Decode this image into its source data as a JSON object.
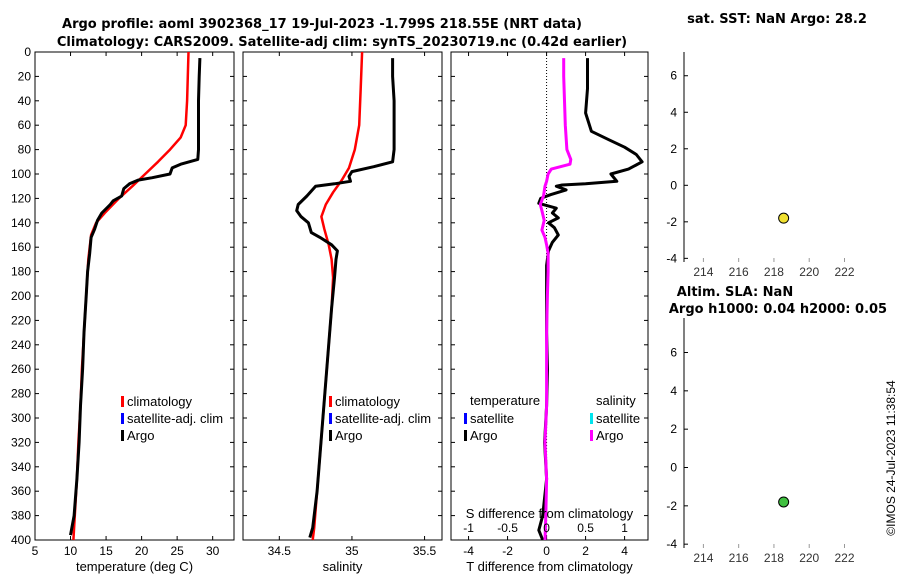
{
  "title_line1": "Argo profile: aoml 3902368_17 19-Jul-2023 -1.799S 218.55E (NRT data)",
  "title_line2": "Climatology: CARS2009. Satellite-adj clim: synTS_20230719.nc (0.42d earlier)",
  "timestamp": "©IMOS 24-Jul-2023 11:38:54",
  "colors": {
    "climatology": "#ff0000",
    "satellite": "#0000ff",
    "argo": "#000000",
    "salinity_diff": "#ff00ff",
    "satellite_s": "#00e5ee",
    "sst_marker": "#f0e030",
    "sla_marker": "#40c040"
  },
  "chart_data": [
    {
      "id": "temperature",
      "type": "line",
      "xlabel": "temperature (deg C)",
      "xlim": [
        5,
        33
      ],
      "ylim": [
        0,
        400
      ],
      "xticks": [
        5,
        10,
        15,
        20,
        25,
        30
      ],
      "yticks": [
        0,
        20,
        40,
        60,
        80,
        100,
        120,
        140,
        160,
        180,
        200,
        220,
        240,
        260,
        280,
        300,
        320,
        340,
        360,
        380,
        400
      ],
      "legend": [
        "climatology",
        "satellite-adj. clim",
        "Argo"
      ],
      "series": [
        {
          "name": "climatology",
          "points": [
            [
              26.6,
              0
            ],
            [
              26.5,
              20
            ],
            [
              26.4,
              40
            ],
            [
              26.2,
              60
            ],
            [
              25.5,
              70
            ],
            [
              24,
              80
            ],
            [
              22.3,
              90
            ],
            [
              20.5,
              100
            ],
            [
              18.7,
              110
            ],
            [
              16.8,
              120
            ],
            [
              14.8,
              132
            ],
            [
              13.6,
              140
            ],
            [
              12.9,
              150
            ],
            [
              12.5,
              170
            ],
            [
              12.2,
              200
            ],
            [
              11.9,
              230
            ],
            [
              11.6,
              260
            ],
            [
              11.4,
              290
            ],
            [
              11.1,
              320
            ],
            [
              10.9,
              350
            ],
            [
              10.6,
              380
            ],
            [
              10.4,
              400
            ]
          ]
        },
        {
          "name": "Argo",
          "points": [
            [
              28.2,
              5
            ],
            [
              28.1,
              20
            ],
            [
              28.0,
              40
            ],
            [
              28.0,
              60
            ],
            [
              28.0,
              80
            ],
            [
              27.9,
              88
            ],
            [
              25.5,
              92
            ],
            [
              24.3,
              95
            ],
            [
              24.0,
              100
            ],
            [
              21.5,
              103
            ],
            [
              19.5,
              105
            ],
            [
              18.3,
              108
            ],
            [
              17.5,
              112
            ],
            [
              17.2,
              118
            ],
            [
              16.0,
              122
            ],
            [
              15.6,
              125
            ],
            [
              14.4,
              132
            ],
            [
              13.8,
              138
            ],
            [
              13.4,
              145
            ],
            [
              12.9,
              152
            ],
            [
              12.7,
              165
            ],
            [
              12.4,
              180
            ],
            [
              12.2,
              200
            ],
            [
              11.9,
              230
            ],
            [
              11.7,
              260
            ],
            [
              11.4,
              290
            ],
            [
              11.2,
              320
            ],
            [
              10.9,
              350
            ],
            [
              10.5,
              380
            ],
            [
              10.0,
              396
            ]
          ]
        }
      ]
    },
    {
      "id": "salinity",
      "type": "line",
      "xlabel": "salinity",
      "xlim": [
        34.25,
        35.62
      ],
      "ylim": [
        0,
        400
      ],
      "xticks": [
        34.5,
        35,
        35.5
      ],
      "legend": [
        "climatology",
        "satellite-adj. clim",
        "Argo"
      ],
      "series": [
        {
          "name": "climatology",
          "points": [
            [
              35.07,
              0
            ],
            [
              35.06,
              30
            ],
            [
              35.05,
              60
            ],
            [
              35.02,
              80
            ],
            [
              34.98,
              95
            ],
            [
              34.93,
              105
            ],
            [
              34.87,
              115
            ],
            [
              34.82,
              125
            ],
            [
              34.79,
              135
            ],
            [
              34.81,
              145
            ],
            [
              34.84,
              158
            ],
            [
              34.86,
              170
            ],
            [
              34.87,
              185
            ],
            [
              34.86,
              210
            ],
            [
              34.84,
              240
            ],
            [
              34.82,
              270
            ],
            [
              34.8,
              300
            ],
            [
              34.78,
              330
            ],
            [
              34.76,
              360
            ],
            [
              34.74,
              390
            ],
            [
              34.73,
              400
            ]
          ]
        },
        {
          "name": "Argo",
          "points": [
            [
              35.28,
              5
            ],
            [
              35.28,
              20
            ],
            [
              35.29,
              40
            ],
            [
              35.29,
              60
            ],
            [
              35.29,
              80
            ],
            [
              35.28,
              90
            ],
            [
              35.15,
              94
            ],
            [
              35.0,
              98
            ],
            [
              34.98,
              102
            ],
            [
              34.99,
              106
            ],
            [
              34.88,
              108
            ],
            [
              34.75,
              110
            ],
            [
              34.69,
              118
            ],
            [
              34.63,
              125
            ],
            [
              34.62,
              130
            ],
            [
              34.65,
              135
            ],
            [
              34.7,
              140
            ],
            [
              34.72,
              148
            ],
            [
              34.78,
              152
            ],
            [
              34.86,
              158
            ],
            [
              34.9,
              163
            ],
            [
              34.89,
              170
            ],
            [
              34.88,
              185
            ],
            [
              34.86,
              210
            ],
            [
              34.84,
              240
            ],
            [
              34.82,
              270
            ],
            [
              34.8,
              300
            ],
            [
              34.78,
              330
            ],
            [
              34.76,
              360
            ],
            [
              34.73,
              390
            ],
            [
              34.71,
              398
            ]
          ]
        }
      ]
    },
    {
      "id": "difference",
      "type": "line",
      "xlabel": "T difference from climatology",
      "xlabel_top": "S difference from climatology",
      "xlim": [
        -4.9,
        5.2
      ],
      "xticks": [
        -4,
        -2,
        0,
        2,
        4
      ],
      "xlim_top": [
        -1.225,
        1.3
      ],
      "xticks_top": [
        -1,
        -0.5,
        0,
        0.5,
        1
      ],
      "ylim": [
        0,
        400
      ],
      "legend_headers": [
        "temperature",
        "salinity"
      ],
      "legend_temperature": [
        "satellite",
        "Argo"
      ],
      "legend_salinity": [
        "satellite",
        "Argo"
      ],
      "series": [
        {
          "name": "temperature Argo",
          "points": [
            [
              2.1,
              5
            ],
            [
              2.1,
              30
            ],
            [
              2.0,
              50
            ],
            [
              2.3,
              65
            ],
            [
              3.2,
              72
            ],
            [
              4.0,
              78
            ],
            [
              4.6,
              84
            ],
            [
              4.9,
              90
            ],
            [
              4.2,
              96
            ],
            [
              3.3,
              100
            ],
            [
              3.6,
              106
            ],
            [
              2.0,
              108
            ],
            [
              0.8,
              109
            ],
            [
              0.5,
              110
            ],
            [
              1.0,
              113
            ],
            [
              0.2,
              117
            ],
            [
              -0.3,
              120
            ],
            [
              -0.4,
              124
            ],
            [
              0.5,
              128
            ],
            [
              0.3,
              132
            ],
            [
              0.6,
              136
            ],
            [
              0.1,
              140
            ],
            [
              0.4,
              144
            ],
            [
              0.6,
              150
            ],
            [
              0.3,
              156
            ],
            [
              0.1,
              163
            ],
            [
              0.0,
              175
            ],
            [
              0.0,
              200
            ],
            [
              0.0,
              230
            ],
            [
              0.05,
              260
            ],
            [
              0.0,
              290
            ],
            [
              -0.1,
              320
            ],
            [
              0.0,
              350
            ],
            [
              -0.2,
              380
            ],
            [
              -0.4,
              392
            ],
            [
              -0.2,
              400
            ]
          ]
        },
        {
          "name": "salinity Argo",
          "points": [
            [
              0.22,
              5
            ],
            [
              0.22,
              20
            ],
            [
              0.23,
              40
            ],
            [
              0.24,
              60
            ],
            [
              0.26,
              80
            ],
            [
              0.31,
              88
            ],
            [
              0.3,
              92
            ],
            [
              0.06,
              96
            ],
            [
              0.02,
              100
            ],
            [
              0.0,
              106
            ],
            [
              -0.02,
              110
            ],
            [
              -0.04,
              118
            ],
            [
              -0.08,
              125
            ],
            [
              -0.06,
              130
            ],
            [
              -0.03,
              138
            ],
            [
              -0.06,
              146
            ],
            [
              -0.02,
              152
            ],
            [
              0.0,
              158
            ],
            [
              0.02,
              165
            ],
            [
              0.02,
              180
            ],
            [
              0.01,
              200
            ],
            [
              0.0,
              230
            ],
            [
              0.0,
              260
            ],
            [
              0.0,
              290
            ],
            [
              -0.02,
              320
            ],
            [
              0.0,
              350
            ],
            [
              -0.01,
              380
            ],
            [
              -0.02,
              400
            ]
          ]
        }
      ]
    },
    {
      "id": "sat_sst",
      "type": "scatter",
      "title": "sat. SST: NaN  Argo: 28.2",
      "xlim": [
        212.9,
        223.9
      ],
      "xticks": [
        214,
        216,
        218,
        220,
        222
      ],
      "ylim": [
        -4.2,
        7.3
      ],
      "yticks": [
        -4,
        -2,
        0,
        2,
        4,
        6
      ],
      "points": [
        [
          218.55,
          -1.799
        ]
      ]
    },
    {
      "id": "altim_sla",
      "type": "scatter",
      "title": "Altim. SLA: NaN",
      "subtitle": "Argo h1000: 0.04  h2000: 0.05",
      "xlim": [
        212.9,
        223.9
      ],
      "xticks": [
        214,
        216,
        218,
        220,
        222
      ],
      "ylim": [
        -4.2,
        7.8
      ],
      "yticks": [
        -4,
        -2,
        0,
        2,
        4,
        6
      ],
      "points": [
        [
          218.55,
          -1.799
        ]
      ]
    }
  ]
}
